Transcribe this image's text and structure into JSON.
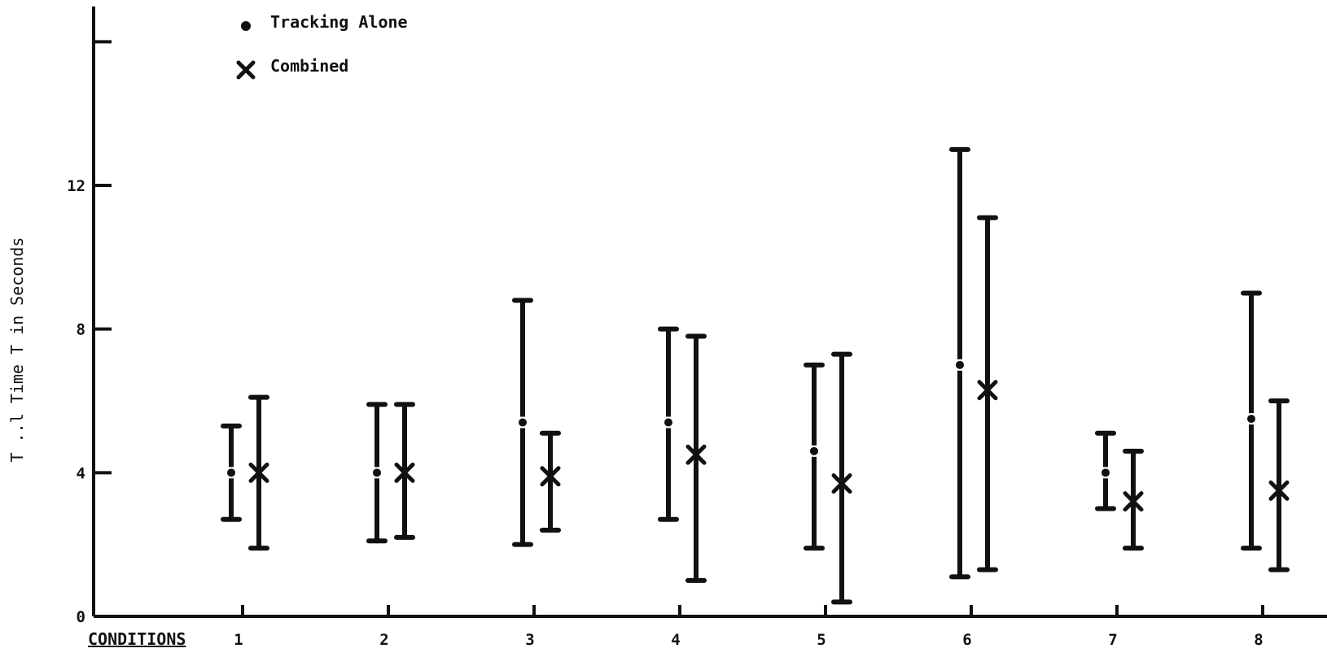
{
  "chart_data": {
    "type": "scatter",
    "title": "",
    "xlabel": "CONDITIONS",
    "ylabel": "T ..l Time T in Seconds",
    "ylim": [
      0,
      16
    ],
    "yticks": [
      0,
      4,
      8,
      12
    ],
    "categories": [
      "1",
      "2",
      "3",
      "4",
      "5",
      "6",
      "7",
      "8"
    ],
    "series": [
      {
        "name": "Tracking Alone",
        "marker": "dot",
        "values": [
          4.0,
          4.0,
          5.4,
          5.4,
          4.6,
          7.0,
          4.0,
          5.5
        ],
        "low": [
          2.7,
          2.1,
          2.0,
          2.7,
          1.9,
          1.1,
          3.0,
          1.9
        ],
        "high": [
          5.3,
          5.9,
          8.8,
          8.0,
          7.0,
          13.0,
          5.1,
          9.0
        ]
      },
      {
        "name": "Combined",
        "marker": "x",
        "values": [
          4.0,
          4.0,
          3.9,
          4.5,
          3.7,
          6.3,
          3.2,
          3.5
        ],
        "low": [
          1.9,
          2.2,
          2.4,
          1.0,
          0.4,
          1.3,
          1.9,
          1.3
        ],
        "high": [
          6.1,
          5.9,
          5.1,
          7.8,
          7.3,
          11.1,
          4.6,
          6.0
        ]
      }
    ],
    "legend": {
      "placement": "top-left",
      "items": [
        {
          "label": "Tracking Alone",
          "marker": "dot"
        },
        {
          "label": "Combined",
          "marker": "x"
        }
      ]
    },
    "grid": false
  }
}
